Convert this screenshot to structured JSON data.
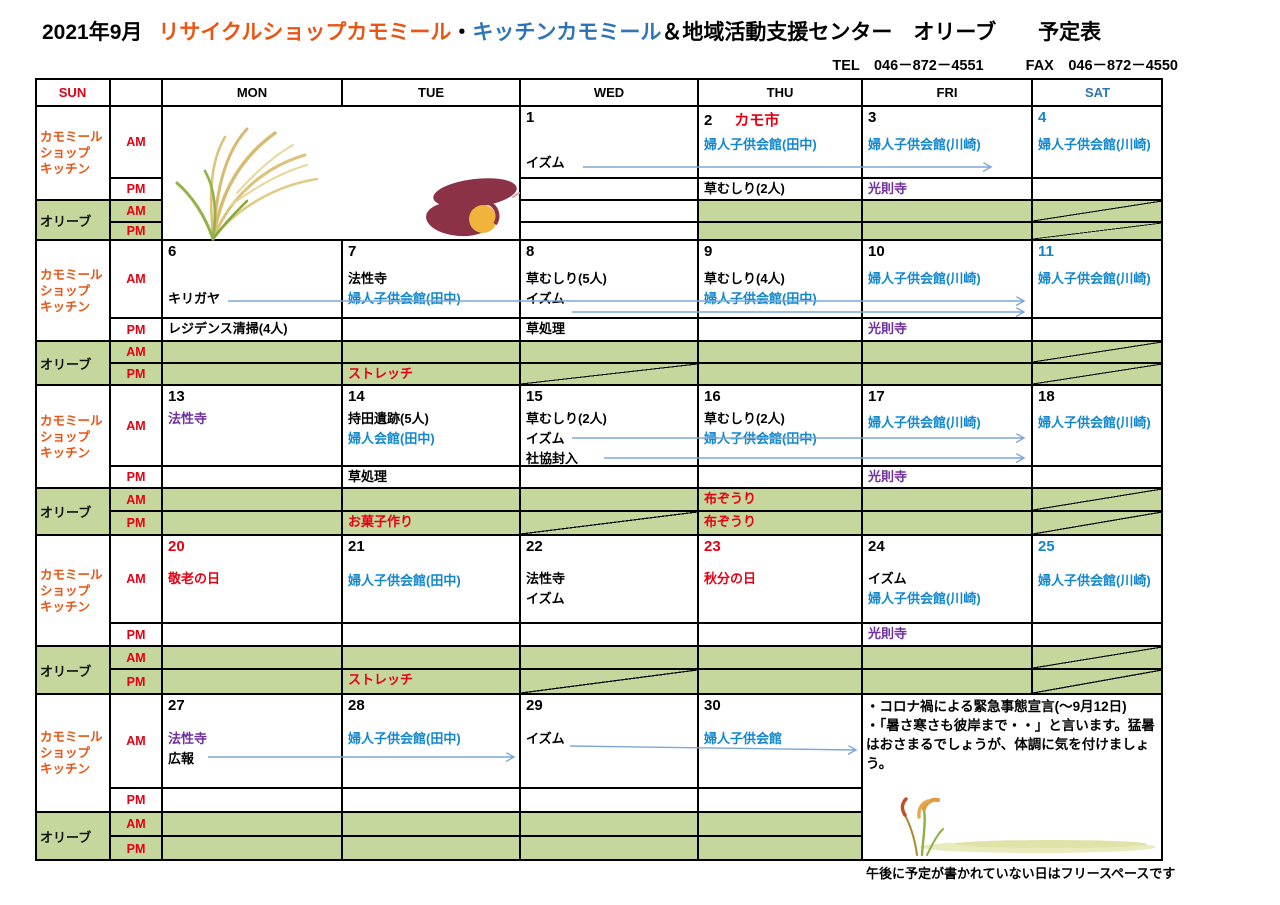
{
  "colors": {
    "green_bg": "#c6d79e",
    "red": "#e50012",
    "orange_red": "#ea5514",
    "blue_entry": "#1287cd",
    "blue_dark": "#2e75b6",
    "purple": "#7030a0",
    "arrow_blue": "#7da7d8",
    "black": "#000000"
  },
  "header": {
    "month": "2021年9月",
    "shop": "リサイクルショップカモミール",
    "sep": "・",
    "kitchen": "キッチンカモミール",
    "rest": "＆地域活動支援センター　オリーブ　　予定表",
    "tel": "TEL　046－872－4551",
    "fax": "FAX　046－872－4550"
  },
  "weekdays": [
    {
      "label": "SUN",
      "color": "#e50012"
    },
    {
      "label": "MON",
      "color": "#000000"
    },
    {
      "label": "TUE",
      "color": "#000000"
    },
    {
      "label": "WED",
      "color": "#000000"
    },
    {
      "label": "THU",
      "color": "#000000"
    },
    {
      "label": "FRI",
      "color": "#000000"
    },
    {
      "label": "SAT",
      "color": "#2e75b6"
    }
  ],
  "groups": {
    "kamomile_lines": [
      "カモミール",
      "ショップ",
      "キッチン"
    ],
    "olive": "オリーブ",
    "am": "AM",
    "pm": "PM"
  },
  "footer": "午後に予定が書かれていない日はフリースペースです",
  "note": {
    "lines": [
      "・コロナ禍による緊急事態宣言(～9月12日)",
      "・「暑さ寒さも彼岸まで・・」と言います。猛暑はおさまるでしょうが、体調に気を付けましょう。"
    ]
  },
  "weeks": [
    {
      "montue_illustration": true,
      "days": {
        "wed": {
          "date": "1",
          "dc": "k",
          "gap": 46,
          "am": [
            [
              "イズム",
              "k"
            ]
          ],
          "pm": [],
          "gam": {
            "bg": "white"
          },
          "gpm": {
            "bg": "white"
          }
        },
        "thu": {
          "date": "2",
          "dc": "k",
          "badge": "カモ市",
          "gap": 28,
          "am": [
            [
              "婦人子供会館(田中)",
              "b"
            ]
          ],
          "pm": [
            [
              "草むしり(2人)",
              "k"
            ]
          ]
        },
        "fri": {
          "date": "3",
          "dc": "k",
          "gap": 28,
          "am": [
            [
              "婦人子供会館(川崎)",
              "b"
            ]
          ],
          "pm": [
            [
              "光則寺",
              "p"
            ]
          ]
        },
        "sat": {
          "date": "4",
          "dc": "b",
          "gap": 28,
          "am": [
            [
              "婦人子供会館(川崎)",
              "b"
            ]
          ],
          "pm": [],
          "gam": {
            "diag": true
          },
          "gpm": {
            "diag": true
          }
        }
      },
      "arrows": [
        [
          583,
          167,
          991,
          167
        ]
      ]
    },
    {
      "days": {
        "mon": {
          "date": "6",
          "dc": "k",
          "gap": 48,
          "am": [
            [
              "キリガヤ",
              "k"
            ]
          ],
          "pm": [
            [
              "レジデンス清掃(4人)",
              "k"
            ]
          ]
        },
        "tue": {
          "date": "7",
          "dc": "k",
          "gap": 28,
          "am": [
            [
              "法性寺",
              "k"
            ],
            [
              "婦人子供会館(田中)",
              "b"
            ]
          ],
          "gpm": {
            "entries": [
              [
                "ストレッチ",
                "r"
              ]
            ]
          }
        },
        "wed": {
          "date": "8",
          "dc": "k",
          "gap": 28,
          "am": [
            [
              "草むしり(5人)",
              "k"
            ],
            [
              "イズム",
              "k"
            ]
          ],
          "pm": [
            [
              "草処理",
              "k"
            ]
          ],
          "gpm": {
            "diag": true
          }
        },
        "thu": {
          "date": "9",
          "dc": "k",
          "gap": 28,
          "am": [
            [
              "草むしり(4人)",
              "k"
            ],
            [
              "婦人子供会館(田中)",
              "b"
            ]
          ]
        },
        "fri": {
          "date": "10",
          "dc": "k",
          "gap": 28,
          "am": [
            [
              "婦人子供会館(川崎)",
              "b"
            ]
          ],
          "pm": [
            [
              "光則寺",
              "p"
            ]
          ]
        },
        "sat": {
          "date": "11",
          "dc": "b",
          "gap": 28,
          "am": [
            [
              "婦人子供会館(川崎)",
              "b"
            ]
          ],
          "gam": {
            "diag": true
          },
          "gpm": {
            "diag": true
          }
        }
      },
      "arrows": [
        [
          228,
          301,
          1024,
          301
        ],
        [
          572,
          312,
          1024,
          312
        ]
      ]
    },
    {
      "days": {
        "mon": {
          "date": "13",
          "dc": "k",
          "gap": 23,
          "am": [
            [
              "法性寺",
              "p"
            ]
          ]
        },
        "tue": {
          "date": "14",
          "dc": "k",
          "gap": 23,
          "am": [
            [
              "持田遺跡(5人)",
              "k"
            ],
            [
              "婦人会館(田中)",
              "b"
            ]
          ],
          "pm": [
            [
              "草処理",
              "k"
            ]
          ],
          "gpm": {
            "entries": [
              [
                "お菓子作り",
                "r"
              ]
            ]
          }
        },
        "wed": {
          "date": "15",
          "dc": "k",
          "gap": 23,
          "am": [
            [
              "草むしり(2人)",
              "k"
            ],
            [
              "イズム",
              "k"
            ],
            [
              "社協封入",
              "k"
            ]
          ],
          "gpm": {
            "diag": true
          }
        },
        "thu": {
          "date": "16",
          "dc": "k",
          "gap": 23,
          "am": [
            [
              "草むしり(2人)",
              "k"
            ],
            [
              "婦人子供会館(田中)",
              "b"
            ]
          ],
          "gam": {
            "entries": [
              [
                "布ぞうり",
                "r"
              ]
            ]
          },
          "gpm": {
            "entries": [
              [
                "布ぞうり",
                "r"
              ]
            ]
          }
        },
        "fri": {
          "date": "17",
          "dc": "k",
          "gap": 27,
          "am": [
            [
              "婦人子供会館(川崎)",
              "b"
            ]
          ],
          "pm": [
            [
              "光則寺",
              "p"
            ]
          ]
        },
        "sat": {
          "date": "18",
          "dc": "k",
          "gap": 27,
          "am": [
            [
              "婦人子供会館(川崎)",
              "b"
            ]
          ],
          "gam": {
            "diag": true
          },
          "gpm": {
            "diag": true
          }
        }
      },
      "arrows": [
        [
          572,
          438,
          1024,
          438
        ],
        [
          604,
          458,
          1024,
          458
        ]
      ]
    },
    {
      "days": {
        "mon": {
          "date": "20",
          "dc": "r",
          "gap": 33,
          "am": [
            [
              "敬老の日",
              "r"
            ]
          ]
        },
        "tue": {
          "date": "21",
          "dc": "k",
          "gap": 35,
          "am": [
            [
              "婦人子供会館(田中)",
              "b"
            ]
          ],
          "gpm": {
            "entries": [
              [
                "ストレッチ",
                "r"
              ]
            ]
          }
        },
        "wed": {
          "date": "22",
          "dc": "k",
          "gap": 33,
          "am": [
            [
              "法性寺",
              "k"
            ],
            [
              "イズム",
              "k"
            ]
          ],
          "gpm": {
            "diag": true
          }
        },
        "thu": {
          "date": "23",
          "dc": "r",
          "gap": 33,
          "am": [
            [
              "秋分の日",
              "r"
            ]
          ]
        },
        "fri": {
          "date": "24",
          "dc": "k",
          "gap": 33,
          "am": [
            [
              "イズム",
              "k"
            ],
            [
              "婦人子供会館(川崎)",
              "b"
            ]
          ],
          "pm": [
            [
              "光則寺",
              "p"
            ]
          ]
        },
        "sat": {
          "date": "25",
          "dc": "b",
          "gap": 35,
          "am": [
            [
              "婦人子供会館(川崎)",
              "b"
            ]
          ],
          "gam": {
            "diag": true
          },
          "gpm": {
            "diag": true
          }
        }
      },
      "arrows": []
    },
    {
      "note_frisat": true,
      "days": {
        "mon": {
          "date": "27",
          "dc": "k",
          "gap": 34,
          "am": [
            [
              "法性寺",
              "p"
            ],
            [
              "広報",
              "k"
            ]
          ]
        },
        "tue": {
          "date": "28",
          "dc": "k",
          "gap": 34,
          "am": [
            [
              "婦人子供会館(田中)",
              "b"
            ]
          ]
        },
        "wed": {
          "date": "29",
          "dc": "k",
          "gap": 34,
          "am": [
            [
              "イズム",
              "k"
            ]
          ]
        },
        "thu": {
          "date": "30",
          "dc": "k",
          "gap": 34,
          "am": [
            [
              "婦人子供会館",
              "b"
            ]
          ]
        }
      },
      "arrows": [
        [
          208,
          757,
          514,
          757
        ],
        [
          570,
          746,
          856,
          750
        ]
      ]
    }
  ]
}
